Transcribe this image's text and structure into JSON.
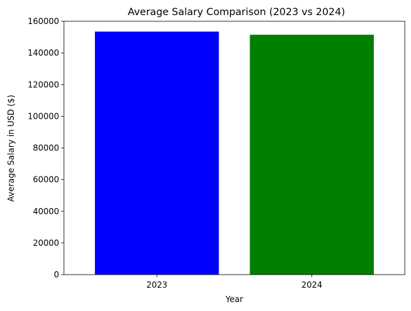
{
  "chart_data": {
    "type": "bar",
    "title": "Average Salary Comparison (2023 vs 2024)",
    "xlabel": "Year",
    "ylabel": "Average Salary in USD ($)",
    "categories": [
      "2023",
      "2024"
    ],
    "values": [
      153500,
      151500
    ],
    "colors": [
      "#0000ff",
      "#008000"
    ],
    "ylim": [
      0,
      160000
    ],
    "yticks": [
      0,
      20000,
      40000,
      60000,
      80000,
      100000,
      120000,
      140000,
      160000
    ],
    "ytick_labels": [
      "0",
      "20000",
      "40000",
      "60000",
      "80000",
      "100000",
      "120000",
      "140000",
      "160000"
    ],
    "grid": false,
    "legend": "none"
  }
}
